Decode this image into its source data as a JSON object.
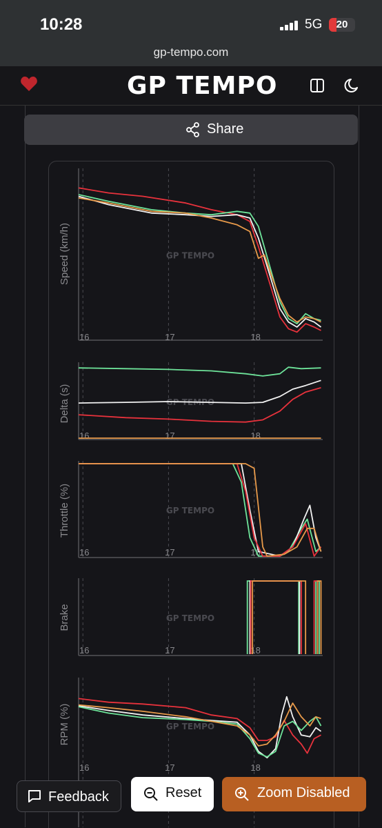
{
  "status_bar": {
    "time": "10:28",
    "network": "5G",
    "battery": "20"
  },
  "browser": {
    "url": "gp-tempo.com"
  },
  "navbar": {
    "logo": "GP TEMPO",
    "icons": [
      "heart-icon",
      "panel-icon",
      "moon-icon"
    ],
    "accent_color": "#c0262d"
  },
  "share": {
    "label": "Share"
  },
  "watermark": "GP TEMPO",
  "x_ticks": [
    "16",
    "17",
    "18"
  ],
  "colors": {
    "red": "#e8323c",
    "white": "#f2f2f2",
    "green": "#6ee49a",
    "orange": "#e89a4a",
    "grid": "#555559"
  },
  "chart_data": [
    {
      "type": "line",
      "ylabel": "Speed (km/h)",
      "x_ticks": [
        16,
        17,
        18
      ],
      "xlim": [
        15.95,
        18.8
      ],
      "series": [
        {
          "color": "red",
          "points": [
            [
              15.95,
              0.9
            ],
            [
              16.3,
              0.87
            ],
            [
              16.7,
              0.85
            ],
            [
              17.2,
              0.81
            ],
            [
              17.5,
              0.77
            ],
            [
              17.8,
              0.74
            ],
            [
              17.95,
              0.7
            ],
            [
              18.05,
              0.55
            ],
            [
              18.2,
              0.3
            ],
            [
              18.3,
              0.13
            ],
            [
              18.4,
              0.06
            ],
            [
              18.5,
              0.04
            ],
            [
              18.6,
              0.09
            ],
            [
              18.7,
              0.07
            ],
            [
              18.78,
              0.05
            ]
          ]
        },
        {
          "color": "white",
          "points": [
            [
              15.95,
              0.85
            ],
            [
              16.3,
              0.8
            ],
            [
              16.8,
              0.75
            ],
            [
              17.2,
              0.74
            ],
            [
              17.5,
              0.73
            ],
            [
              17.8,
              0.74
            ],
            [
              17.95,
              0.72
            ],
            [
              18.05,
              0.6
            ],
            [
              18.2,
              0.35
            ],
            [
              18.3,
              0.18
            ],
            [
              18.4,
              0.1
            ],
            [
              18.5,
              0.07
            ],
            [
              18.6,
              0.12
            ],
            [
              18.7,
              0.1
            ],
            [
              18.78,
              0.07
            ]
          ]
        },
        {
          "color": "green",
          "points": [
            [
              15.95,
              0.86
            ],
            [
              16.3,
              0.82
            ],
            [
              16.8,
              0.77
            ],
            [
              17.2,
              0.75
            ],
            [
              17.5,
              0.74
            ],
            [
              17.8,
              0.76
            ],
            [
              17.95,
              0.75
            ],
            [
              18.05,
              0.67
            ],
            [
              18.2,
              0.4
            ],
            [
              18.3,
              0.22
            ],
            [
              18.4,
              0.12
            ],
            [
              18.5,
              0.09
            ],
            [
              18.6,
              0.15
            ],
            [
              18.7,
              0.12
            ],
            [
              18.78,
              0.11
            ]
          ]
        },
        {
          "color": "orange",
          "points": [
            [
              15.95,
              0.84
            ],
            [
              16.3,
              0.81
            ],
            [
              16.8,
              0.76
            ],
            [
              17.2,
              0.75
            ],
            [
              17.5,
              0.72
            ],
            [
              17.8,
              0.68
            ],
            [
              17.95,
              0.64
            ],
            [
              18.05,
              0.48
            ],
            [
              18.12,
              0.5
            ],
            [
              18.2,
              0.38
            ],
            [
              18.3,
              0.24
            ],
            [
              18.4,
              0.14
            ],
            [
              18.5,
              0.1
            ],
            [
              18.6,
              0.13
            ],
            [
              18.7,
              0.12
            ],
            [
              18.78,
              0.1
            ]
          ]
        }
      ]
    },
    {
      "type": "line",
      "ylabel": "Delta (s)",
      "x_ticks": [
        16,
        17,
        18
      ],
      "xlim": [
        15.95,
        18.8
      ],
      "series": [
        {
          "color": "green",
          "points": [
            [
              15.95,
              0.96
            ],
            [
              16.5,
              0.95
            ],
            [
              17.0,
              0.94
            ],
            [
              17.5,
              0.92
            ],
            [
              17.9,
              0.88
            ],
            [
              18.1,
              0.85
            ],
            [
              18.3,
              0.88
            ],
            [
              18.4,
              0.97
            ],
            [
              18.55,
              0.95
            ],
            [
              18.78,
              0.96
            ]
          ]
        },
        {
          "color": "white",
          "points": [
            [
              15.95,
              0.48
            ],
            [
              16.5,
              0.49
            ],
            [
              17.0,
              0.5
            ],
            [
              17.5,
              0.49
            ],
            [
              17.9,
              0.48
            ],
            [
              18.1,
              0.49
            ],
            [
              18.3,
              0.57
            ],
            [
              18.45,
              0.67
            ],
            [
              18.6,
              0.72
            ],
            [
              18.78,
              0.79
            ]
          ]
        },
        {
          "color": "red",
          "points": [
            [
              15.95,
              0.32
            ],
            [
              16.5,
              0.28
            ],
            [
              17.0,
              0.26
            ],
            [
              17.5,
              0.23
            ],
            [
              17.9,
              0.22
            ],
            [
              18.1,
              0.25
            ],
            [
              18.3,
              0.37
            ],
            [
              18.45,
              0.53
            ],
            [
              18.6,
              0.63
            ],
            [
              18.78,
              0.69
            ]
          ]
        },
        {
          "color": "orange",
          "points": [
            [
              15.95,
              0.0
            ],
            [
              18.78,
              0.0
            ]
          ]
        }
      ]
    },
    {
      "type": "line",
      "ylabel": "Throttle (%)",
      "x_ticks": [
        16,
        17,
        18
      ],
      "xlim": [
        15.95,
        18.8
      ],
      "series": [
        {
          "color": "green",
          "points": [
            [
              15.95,
              1.0
            ],
            [
              17.75,
              1.0
            ],
            [
              17.85,
              0.8
            ],
            [
              17.95,
              0.2
            ],
            [
              18.05,
              0.0
            ],
            [
              18.3,
              0.0
            ],
            [
              18.4,
              0.05
            ],
            [
              18.55,
              0.3
            ],
            [
              18.62,
              0.4
            ],
            [
              18.72,
              0.05
            ],
            [
              18.78,
              0.1
            ]
          ]
        },
        {
          "color": "white",
          "points": [
            [
              15.95,
              1.0
            ],
            [
              17.85,
              1.0
            ],
            [
              17.95,
              0.5
            ],
            [
              18.05,
              0.05
            ],
            [
              18.3,
              0.0
            ],
            [
              18.45,
              0.1
            ],
            [
              18.58,
              0.4
            ],
            [
              18.65,
              0.55
            ],
            [
              18.72,
              0.2
            ],
            [
              18.78,
              0.05
            ]
          ]
        },
        {
          "color": "red",
          "points": [
            [
              15.95,
              1.0
            ],
            [
              17.8,
              1.0
            ],
            [
              17.9,
              0.7
            ],
            [
              18.0,
              0.2
            ],
            [
              18.1,
              0.0
            ],
            [
              18.3,
              0.0
            ],
            [
              18.45,
              0.1
            ],
            [
              18.6,
              0.35
            ],
            [
              18.7,
              0.0
            ],
            [
              18.78,
              0.1
            ]
          ]
        },
        {
          "color": "orange",
          "points": [
            [
              15.95,
              1.0
            ],
            [
              17.9,
              1.0
            ],
            [
              18.0,
              0.95
            ],
            [
              18.1,
              0.1
            ],
            [
              18.15,
              0.0
            ],
            [
              18.35,
              0.02
            ],
            [
              18.5,
              0.1
            ],
            [
              18.62,
              0.3
            ],
            [
              18.7,
              0.3
            ],
            [
              18.78,
              0.05
            ]
          ]
        }
      ]
    },
    {
      "type": "line",
      "ylabel": "Brake",
      "x_ticks": [
        16,
        17,
        18
      ],
      "xlim": [
        15.95,
        18.8
      ],
      "series": [
        {
          "color": "green",
          "segments": [
            [
              17.92,
              18.52
            ],
            [
              18.72,
              18.76
            ]
          ]
        },
        {
          "color": "white",
          "segments": [
            [
              17.95,
              18.53
            ]
          ]
        },
        {
          "color": "red",
          "segments": [
            [
              17.96,
              18.55
            ],
            [
              18.7,
              18.74
            ]
          ]
        },
        {
          "color": "orange",
          "segments": [
            [
              17.98,
              18.6
            ],
            [
              18.74,
              18.78
            ]
          ]
        }
      ]
    },
    {
      "type": "line",
      "ylabel": "RPM (%)",
      "x_ticks": [
        16,
        17,
        18
      ],
      "xlim": [
        15.95,
        18.8
      ],
      "series": [
        {
          "color": "red",
          "points": [
            [
              15.95,
              0.8
            ],
            [
              16.3,
              0.76
            ],
            [
              16.7,
              0.74
            ],
            [
              17.2,
              0.7
            ],
            [
              17.5,
              0.62
            ],
            [
              17.8,
              0.58
            ],
            [
              17.95,
              0.48
            ],
            [
              18.05,
              0.34
            ],
            [
              18.15,
              0.34
            ],
            [
              18.25,
              0.38
            ],
            [
              18.35,
              0.56
            ],
            [
              18.45,
              0.4
            ],
            [
              18.55,
              0.3
            ],
            [
              18.62,
              0.2
            ],
            [
              18.7,
              0.36
            ],
            [
              18.78,
              0.4
            ]
          ]
        },
        {
          "color": "white",
          "points": [
            [
              15.95,
              0.72
            ],
            [
              16.3,
              0.67
            ],
            [
              16.7,
              0.62
            ],
            [
              17.2,
              0.58
            ],
            [
              17.5,
              0.56
            ],
            [
              17.8,
              0.54
            ],
            [
              17.95,
              0.4
            ],
            [
              18.05,
              0.22
            ],
            [
              18.15,
              0.15
            ],
            [
              18.25,
              0.25
            ],
            [
              18.32,
              0.62
            ],
            [
              18.38,
              0.82
            ],
            [
              18.45,
              0.6
            ],
            [
              18.55,
              0.4
            ],
            [
              18.65,
              0.38
            ],
            [
              18.72,
              0.48
            ],
            [
              18.78,
              0.44
            ]
          ]
        },
        {
          "color": "green",
          "points": [
            [
              15.95,
              0.71
            ],
            [
              16.3,
              0.64
            ],
            [
              16.7,
              0.59
            ],
            [
              17.2,
              0.57
            ],
            [
              17.5,
              0.55
            ],
            [
              17.8,
              0.52
            ],
            [
              17.95,
              0.36
            ],
            [
              18.05,
              0.2
            ],
            [
              18.15,
              0.16
            ],
            [
              18.25,
              0.22
            ],
            [
              18.35,
              0.5
            ],
            [
              18.45,
              0.55
            ],
            [
              18.55,
              0.45
            ],
            [
              18.65,
              0.55
            ],
            [
              18.72,
              0.6
            ],
            [
              18.78,
              0.5
            ]
          ]
        },
        {
          "color": "orange",
          "points": [
            [
              15.95,
              0.73
            ],
            [
              16.3,
              0.7
            ],
            [
              16.7,
              0.66
            ],
            [
              17.2,
              0.6
            ],
            [
              17.5,
              0.55
            ],
            [
              17.8,
              0.5
            ],
            [
              17.95,
              0.4
            ],
            [
              18.05,
              0.28
            ],
            [
              18.15,
              0.3
            ],
            [
              18.25,
              0.4
            ],
            [
              18.35,
              0.55
            ],
            [
              18.45,
              0.75
            ],
            [
              18.55,
              0.6
            ],
            [
              18.65,
              0.5
            ],
            [
              18.72,
              0.6
            ],
            [
              18.78,
              0.58
            ]
          ]
        }
      ]
    }
  ],
  "bottom_bar": {
    "feedback": {
      "label": "Feedback"
    },
    "reset": {
      "label": "Reset"
    },
    "zoom": {
      "label": "Zoom Disabled",
      "color": "#b85f22"
    }
  }
}
